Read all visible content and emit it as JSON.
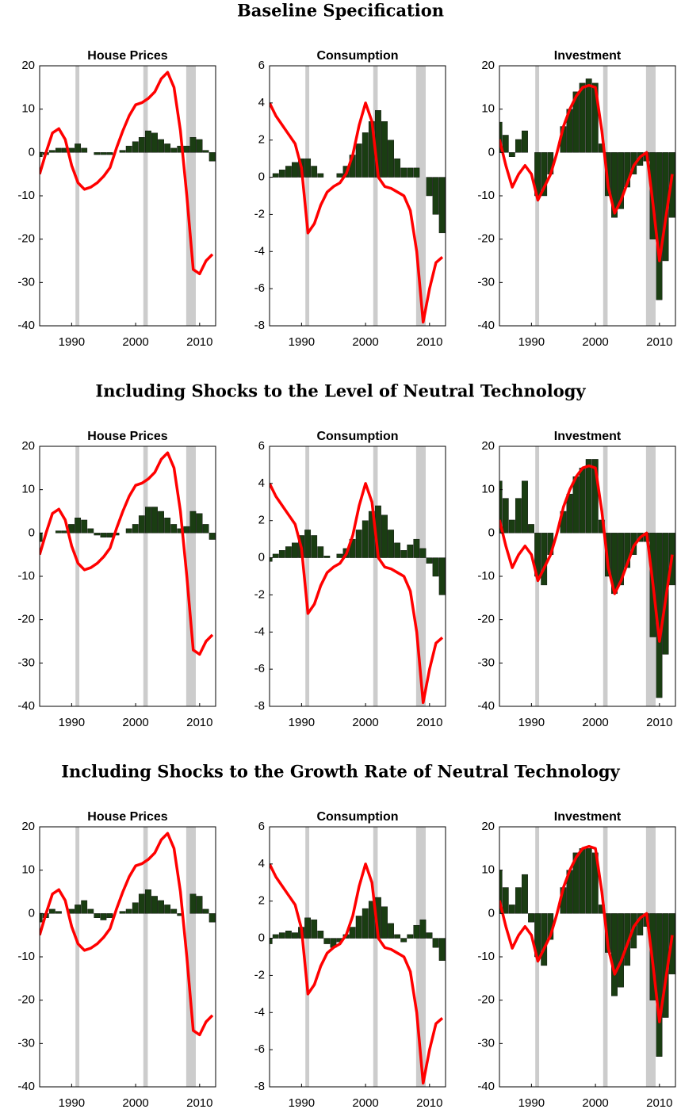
{
  "sections": [
    "Baseline Specification",
    "Including Shocks to the Level of Neutral Technology",
    "Including Shocks to the Growth Rate of Neutral Technology"
  ],
  "chart_data": [
    {
      "type": "bar_line",
      "title": "House Prices",
      "x": [
        1985,
        1986,
        1987,
        1988,
        1989,
        1990,
        1991,
        1992,
        1993,
        1994,
        1995,
        1996,
        1997,
        1998,
        1999,
        2000,
        2001,
        2002,
        2003,
        2004,
        2005,
        2006,
        2007,
        2008,
        2009,
        2010,
        2011,
        2012
      ],
      "xlim": [
        1985,
        2012.5
      ],
      "xticks": [
        1990,
        2000,
        2010
      ],
      "ylim": [
        -40,
        20
      ],
      "yticks": [
        -40,
        -30,
        -20,
        -10,
        0,
        10,
        20
      ],
      "shaded": [
        [
          1990.6,
          1991.2
        ],
        [
          2001.2,
          2001.9
        ],
        [
          2007.9,
          2009.4
        ]
      ],
      "shade_color": "#cccccc",
      "series": [
        {
          "kind": "bar",
          "color": "#1a3d12",
          "values": [
            -1,
            -0.5,
            0.5,
            1,
            1,
            1,
            2,
            1,
            0,
            -0.5,
            -0.5,
            -0.5,
            0,
            0.5,
            1.5,
            2.5,
            3.5,
            5,
            4.5,
            3,
            2,
            1,
            1.5,
            1.5,
            3.5,
            3,
            0.5,
            -2
          ]
        },
        {
          "kind": "line",
          "color": "#ff0000",
          "values": [
            -5,
            0,
            4.5,
            5.5,
            3,
            -3,
            -7,
            -8.5,
            -8,
            -7,
            -5.5,
            -3.5,
            1,
            5,
            8.5,
            11,
            11.5,
            12.5,
            14,
            17,
            18.5,
            15,
            5,
            -10,
            -27,
            -28,
            -25,
            -23.5
          ]
        }
      ]
    },
    {
      "type": "bar_line",
      "title": "Consumption",
      "x": [
        1985,
        1986,
        1987,
        1988,
        1989,
        1990,
        1991,
        1992,
        1993,
        1994,
        1995,
        1996,
        1997,
        1998,
        1999,
        2000,
        2001,
        2002,
        2003,
        2004,
        2005,
        2006,
        2007,
        2008,
        2009,
        2010,
        2011,
        2012
      ],
      "xlim": [
        1985,
        2012.5
      ],
      "xticks": [
        1990,
        2000,
        2010
      ],
      "ylim": [
        -8,
        6
      ],
      "yticks": [
        -8,
        -6,
        -4,
        -2,
        0,
        2,
        4,
        6
      ],
      "shaded": [
        [
          1990.6,
          1991.2
        ],
        [
          2001.2,
          2001.9
        ],
        [
          2007.9,
          2009.4
        ]
      ],
      "shade_color": "#cccccc",
      "series": [
        {
          "kind": "bar",
          "color": "#1a3d12",
          "values": [
            0,
            0.2,
            0.4,
            0.6,
            0.8,
            1,
            1,
            0.6,
            0.2,
            0,
            0,
            0.2,
            0.6,
            1.2,
            1.8,
            2.4,
            3,
            3.6,
            3,
            2,
            1,
            0.5,
            0.5,
            0.5,
            0,
            -1,
            -2,
            -3
          ]
        },
        {
          "kind": "line",
          "color": "#ff0000",
          "values": [
            4,
            3.3,
            2.8,
            2.3,
            1.8,
            0.5,
            -3,
            -2.5,
            -1.5,
            -0.8,
            -0.5,
            -0.3,
            0.2,
            1.2,
            2.8,
            4,
            3,
            0,
            -0.5,
            -0.6,
            -0.8,
            -1,
            -1.8,
            -4,
            -7.8,
            -6,
            -4.6,
            -4.3
          ]
        }
      ]
    },
    {
      "type": "bar_line",
      "title": "Investment",
      "x": [
        1985,
        1986,
        1987,
        1988,
        1989,
        1990,
        1991,
        1992,
        1993,
        1994,
        1995,
        1996,
        1997,
        1998,
        1999,
        2000,
        2001,
        2002,
        2003,
        2004,
        2005,
        2006,
        2007,
        2008,
        2009,
        2010,
        2011,
        2012
      ],
      "xlim": [
        1985,
        2012.5
      ],
      "xticks": [
        1990,
        2000,
        2010
      ],
      "ylim": [
        -40,
        20
      ],
      "yticks": [
        -40,
        -30,
        -20,
        -10,
        0,
        10,
        20
      ],
      "shaded": [
        [
          1990.6,
          1991.2
        ],
        [
          2001.2,
          2001.9
        ],
        [
          2007.9,
          2009.4
        ]
      ],
      "shade_color": "#cccccc",
      "series": [
        {
          "kind": "bar",
          "color": "#1a3d12",
          "values": [
            7,
            4,
            -1,
            3,
            5,
            0,
            -10,
            -10,
            -5,
            0,
            6,
            10,
            14,
            16,
            17,
            16,
            2,
            -10,
            -15,
            -13,
            -8,
            -5,
            -3,
            -2,
            -20,
            -34,
            -25,
            -15
          ]
        },
        {
          "kind": "line",
          "color": "#ff0000",
          "values": [
            3,
            -3,
            -8,
            -5,
            -3,
            -5,
            -11,
            -8,
            -5,
            0,
            6,
            10,
            13,
            15,
            15.5,
            15,
            5,
            -8,
            -14,
            -11,
            -7,
            -3,
            -1,
            0,
            -12,
            -25,
            -15,
            -5
          ]
        }
      ]
    },
    {
      "type": "bar_line",
      "title": "House Prices",
      "x": [
        1985,
        1986,
        1987,
        1988,
        1989,
        1990,
        1991,
        1992,
        1993,
        1994,
        1995,
        1996,
        1997,
        1998,
        1999,
        2000,
        2001,
        2002,
        2003,
        2004,
        2005,
        2006,
        2007,
        2008,
        2009,
        2010,
        2011,
        2012
      ],
      "xlim": [
        1985,
        2012.5
      ],
      "xticks": [
        1990,
        2000,
        2010
      ],
      "ylim": [
        -40,
        20
      ],
      "yticks": [
        -40,
        -30,
        -20,
        -10,
        0,
        10,
        20
      ],
      "shaded": [
        [
          1990.6,
          1991.2
        ],
        [
          2001.2,
          2001.9
        ],
        [
          2007.9,
          2009.4
        ]
      ],
      "shade_color": "#cccccc",
      "series": [
        {
          "kind": "bar",
          "color": "#1a3d12",
          "values": [
            -2,
            0,
            0,
            0.5,
            0.5,
            2,
            3.5,
            3,
            1,
            -0.5,
            -1,
            -1,
            -0.5,
            0,
            1,
            2,
            4,
            6,
            6,
            5,
            3.5,
            2,
            1,
            1.5,
            5,
            4.5,
            2,
            -1.5
          ]
        },
        {
          "kind": "line",
          "color": "#ff0000",
          "values": [
            -5,
            0,
            4.5,
            5.5,
            3,
            -3,
            -7,
            -8.5,
            -8,
            -7,
            -5.5,
            -3.5,
            1,
            5,
            8.5,
            11,
            11.5,
            12.5,
            14,
            17,
            18.5,
            15,
            5,
            -10,
            -27,
            -28,
            -25,
            -23.5
          ]
        }
      ]
    },
    {
      "type": "bar_line",
      "title": "Consumption",
      "x": [
        1985,
        1986,
        1987,
        1988,
        1989,
        1990,
        1991,
        1992,
        1993,
        1994,
        1995,
        1996,
        1997,
        1998,
        1999,
        2000,
        2001,
        2002,
        2003,
        2004,
        2005,
        2006,
        2007,
        2008,
        2009,
        2010,
        2011,
        2012
      ],
      "xlim": [
        1985,
        2012.5
      ],
      "xticks": [
        1990,
        2000,
        2010
      ],
      "ylim": [
        -8,
        6
      ],
      "yticks": [
        -8,
        -6,
        -4,
        -2,
        0,
        2,
        4,
        6
      ],
      "shaded": [
        [
          1990.6,
          1991.2
        ],
        [
          2001.2,
          2001.9
        ],
        [
          2007.9,
          2009.4
        ]
      ],
      "shade_color": "#cccccc",
      "series": [
        {
          "kind": "bar",
          "color": "#1a3d12",
          "values": [
            -0.2,
            0.2,
            0.4,
            0.6,
            0.8,
            1.2,
            1.5,
            1.2,
            0.6,
            0.1,
            0,
            0.2,
            0.5,
            1,
            1.5,
            2,
            2.5,
            2.8,
            2.3,
            1.5,
            0.8,
            0.4,
            0.7,
            1,
            0.5,
            -0.3,
            -1,
            -2
          ]
        },
        {
          "kind": "line",
          "color": "#ff0000",
          "values": [
            4,
            3.3,
            2.8,
            2.3,
            1.8,
            0.5,
            -3,
            -2.5,
            -1.5,
            -0.8,
            -0.5,
            -0.3,
            0.2,
            1.2,
            2.8,
            4,
            3,
            0,
            -0.5,
            -0.6,
            -0.8,
            -1,
            -1.8,
            -4,
            -7.8,
            -6,
            -4.6,
            -4.3
          ]
        }
      ]
    },
    {
      "type": "bar_line",
      "title": "Investment",
      "x": [
        1985,
        1986,
        1987,
        1988,
        1989,
        1990,
        1991,
        1992,
        1993,
        1994,
        1995,
        1996,
        1997,
        1998,
        1999,
        2000,
        2001,
        2002,
        2003,
        2004,
        2005,
        2006,
        2007,
        2008,
        2009,
        2010,
        2011,
        2012
      ],
      "xlim": [
        1985,
        2012.5
      ],
      "xticks": [
        1990,
        2000,
        2010
      ],
      "ylim": [
        -40,
        20
      ],
      "yticks": [
        -40,
        -30,
        -20,
        -10,
        0,
        10,
        20
      ],
      "shaded": [
        [
          1990.6,
          1991.2
        ],
        [
          2001.2,
          2001.9
        ],
        [
          2007.9,
          2009.4
        ]
      ],
      "shade_color": "#cccccc",
      "series": [
        {
          "kind": "bar",
          "color": "#1a3d12",
          "values": [
            12,
            8,
            3,
            8,
            12,
            2,
            -10,
            -12,
            -5,
            0,
            5,
            9,
            13,
            15,
            17,
            17,
            3,
            -10,
            -14,
            -12,
            -8,
            -5,
            -2,
            -2,
            -24,
            -38,
            -28,
            -12
          ]
        },
        {
          "kind": "line",
          "color": "#ff0000",
          "values": [
            3,
            -3,
            -8,
            -5,
            -3,
            -5,
            -11,
            -8,
            -5,
            0,
            6,
            10,
            13,
            15,
            15.5,
            15,
            5,
            -8,
            -14,
            -11,
            -7,
            -3,
            -1,
            0,
            -12,
            -25,
            -15,
            -5
          ]
        }
      ]
    },
    {
      "type": "bar_line",
      "title": "House Prices",
      "x": [
        1985,
        1986,
        1987,
        1988,
        1989,
        1990,
        1991,
        1992,
        1993,
        1994,
        1995,
        1996,
        1997,
        1998,
        1999,
        2000,
        2001,
        2002,
        2003,
        2004,
        2005,
        2006,
        2007,
        2008,
        2009,
        2010,
        2011,
        2012
      ],
      "xlim": [
        1985,
        2012.5
      ],
      "xticks": [
        1990,
        2000,
        2010
      ],
      "ylim": [
        -40,
        20
      ],
      "yticks": [
        -40,
        -30,
        -20,
        -10,
        0,
        10,
        20
      ],
      "shaded": [
        [
          1990.6,
          1991.2
        ],
        [
          2001.2,
          2001.9
        ],
        [
          2007.9,
          2009.4
        ]
      ],
      "shade_color": "#cccccc",
      "series": [
        {
          "kind": "bar",
          "color": "#1a3d12",
          "values": [
            -2,
            -1,
            1,
            0.5,
            0,
            1,
            2,
            3,
            1,
            -1,
            -1.5,
            -1,
            0,
            0.5,
            1,
            2.5,
            4.5,
            5.5,
            4,
            3,
            2,
            1,
            -0.5,
            0,
            4.5,
            4,
            1,
            -2
          ]
        },
        {
          "kind": "line",
          "color": "#ff0000",
          "values": [
            -5,
            0,
            4.5,
            5.5,
            3,
            -3,
            -7,
            -8.5,
            -8,
            -7,
            -5.5,
            -3.5,
            1,
            5,
            8.5,
            11,
            11.5,
            12.5,
            14,
            17,
            18.5,
            15,
            5,
            -10,
            -27,
            -28,
            -25,
            -23.5
          ]
        }
      ]
    },
    {
      "type": "bar_line",
      "title": "Consumption",
      "x": [
        1985,
        1986,
        1987,
        1988,
        1989,
        1990,
        1991,
        1992,
        1993,
        1994,
        1995,
        1996,
        1997,
        1998,
        1999,
        2000,
        2001,
        2002,
        2003,
        2004,
        2005,
        2006,
        2007,
        2008,
        2009,
        2010,
        2011,
        2012
      ],
      "xlim": [
        1985,
        2012.5
      ],
      "xticks": [
        1990,
        2000,
        2010
      ],
      "ylim": [
        -8,
        6
      ],
      "yticks": [
        -8,
        -6,
        -4,
        -2,
        0,
        2,
        4,
        6
      ],
      "shaded": [
        [
          1990.6,
          1991.2
        ],
        [
          2001.2,
          2001.9
        ],
        [
          2007.9,
          2009.4
        ]
      ],
      "shade_color": "#cccccc",
      "series": [
        {
          "kind": "bar",
          "color": "#1a3d12",
          "values": [
            -0.3,
            0.2,
            0.3,
            0.4,
            0.3,
            0.6,
            1.1,
            1,
            0.4,
            -0.3,
            -0.5,
            -0.2,
            0.2,
            0.6,
            1.2,
            1.6,
            2,
            2.2,
            1.7,
            0.8,
            0.2,
            -0.2,
            0.2,
            0.7,
            1,
            0.3,
            -0.5,
            -1.2
          ]
        },
        {
          "kind": "line",
          "color": "#ff0000",
          "values": [
            4,
            3.3,
            2.8,
            2.3,
            1.8,
            0.5,
            -3,
            -2.5,
            -1.5,
            -0.8,
            -0.5,
            -0.3,
            0.2,
            1.2,
            2.8,
            4,
            3,
            0,
            -0.5,
            -0.6,
            -0.8,
            -1,
            -1.8,
            -4,
            -7.8,
            -6,
            -4.6,
            -4.3
          ]
        }
      ]
    },
    {
      "type": "bar_line",
      "title": "Investment",
      "x": [
        1985,
        1986,
        1987,
        1988,
        1989,
        1990,
        1991,
        1992,
        1993,
        1994,
        1995,
        1996,
        1997,
        1998,
        1999,
        2000,
        2001,
        2002,
        2003,
        2004,
        2005,
        2006,
        2007,
        2008,
        2009,
        2010,
        2011,
        2012
      ],
      "xlim": [
        1985,
        2012.5
      ],
      "xticks": [
        1990,
        2000,
        2010
      ],
      "ylim": [
        -40,
        20
      ],
      "yticks": [
        -40,
        -30,
        -20,
        -10,
        0,
        10,
        20
      ],
      "shaded": [
        [
          1990.6,
          1991.2
        ],
        [
          2001.2,
          2001.9
        ],
        [
          2007.9,
          2009.4
        ]
      ],
      "shade_color": "#cccccc",
      "series": [
        {
          "kind": "bar",
          "color": "#1a3d12",
          "values": [
            10,
            6,
            2,
            6,
            9,
            -2,
            -10,
            -12,
            -6,
            0,
            6,
            10,
            14,
            15,
            15,
            14,
            2,
            -9,
            -19,
            -17,
            -12,
            -8,
            -5,
            -3,
            -20,
            -33,
            -24,
            -14
          ]
        },
        {
          "kind": "line",
          "color": "#ff0000",
          "values": [
            3,
            -3,
            -8,
            -5,
            -3,
            -5,
            -11,
            -8,
            -5,
            0,
            6,
            10,
            13,
            15,
            15.5,
            15,
            5,
            -8,
            -14,
            -11,
            -7,
            -3,
            -1,
            0,
            -12,
            -25,
            -15,
            -5
          ]
        }
      ]
    }
  ]
}
